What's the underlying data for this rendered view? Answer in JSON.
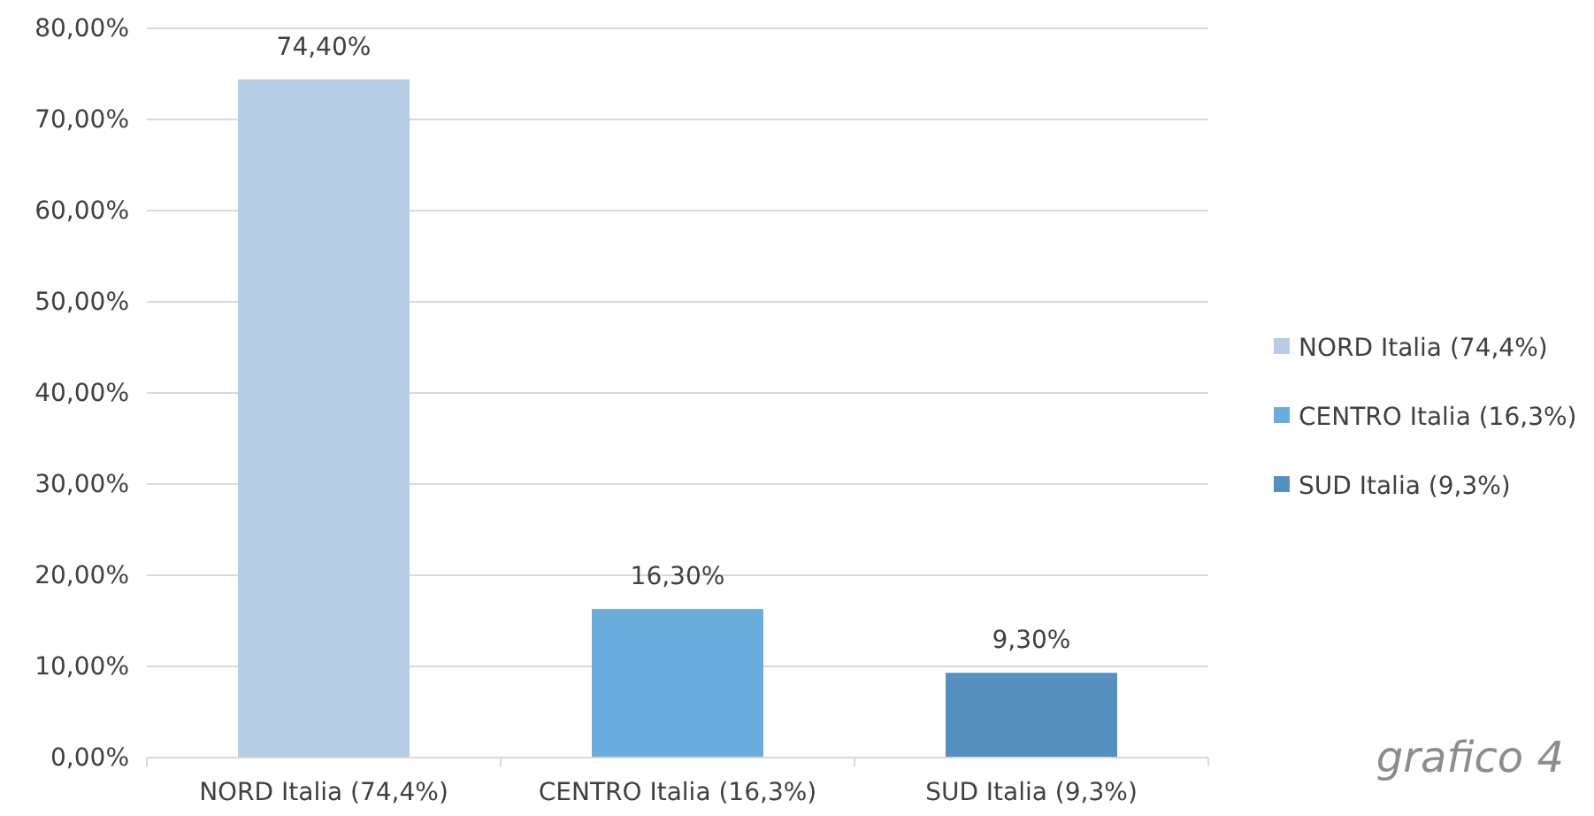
{
  "chart_data": {
    "type": "bar",
    "categories": [
      "NORD Italia (74,4%)",
      "CENTRO Italia (16,3%)",
      "SUD Italia (9,3%)"
    ],
    "stacked": true,
    "series": [
      {
        "name": "NORD Italia (74,4%)",
        "color": "#b7cde6",
        "values": [
          74.4,
          null,
          null
        ],
        "value_labels": [
          "74,40%",
          null,
          null
        ]
      },
      {
        "name": "CENTRO Italia (16,3%)",
        "color": "#6aacdc",
        "values": [
          null,
          16.3,
          null
        ],
        "value_labels": [
          null,
          "16,30%",
          null
        ]
      },
      {
        "name": "SUD Italia (9,3%)",
        "color": "#5690c0",
        "values": [
          null,
          null,
          9.3
        ],
        "value_labels": [
          null,
          null,
          "9,30%"
        ]
      }
    ],
    "ylim": [
      0,
      80
    ],
    "yticks": [
      {
        "value": 0,
        "label": "0,00%"
      },
      {
        "value": 10,
        "label": "10,00%"
      },
      {
        "value": 20,
        "label": "20,00%"
      },
      {
        "value": 30,
        "label": "30,00%"
      },
      {
        "value": 40,
        "label": "40,00%"
      },
      {
        "value": 50,
        "label": "50,00%"
      },
      {
        "value": 60,
        "label": "60,00%"
      },
      {
        "value": 70,
        "label": "70,00%"
      },
      {
        "value": 80,
        "label": "80,00%"
      }
    ],
    "grid": "y",
    "legend": "right",
    "annotations": [
      "grafico 4"
    ]
  }
}
